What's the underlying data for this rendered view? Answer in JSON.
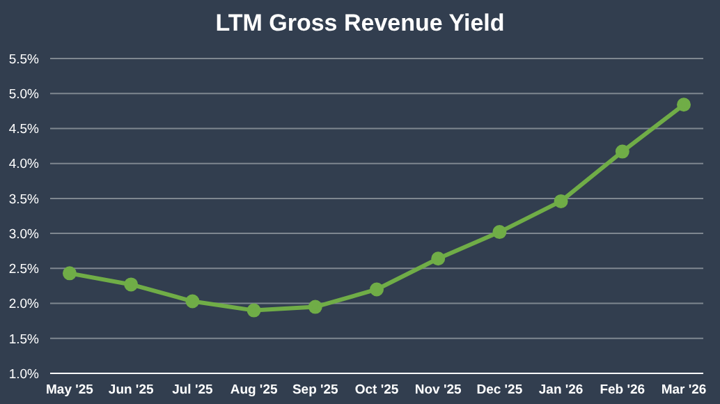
{
  "chart_data": {
    "type": "line",
    "title": "LTM Gross Revenue Yield",
    "categories": [
      "May '25",
      "Jun '25",
      "Jul '25",
      "Aug '25",
      "Sep '25",
      "Oct '25",
      "Nov '25",
      "Dec '25",
      "Jan '26",
      "Feb '26",
      "Mar '26"
    ],
    "series": [
      {
        "color": "#70ad47",
        "values": [
          2.43,
          2.27,
          2.03,
          1.9,
          1.95,
          2.2,
          2.64,
          3.02,
          3.46,
          4.17,
          4.84
        ]
      }
    ],
    "ylim": [
      1.0,
      5.5
    ],
    "yticks": [
      {
        "value": 1.0,
        "label": "1.0%"
      },
      {
        "value": 1.5,
        "label": "1.5%"
      },
      {
        "value": 2.0,
        "label": "2.0%"
      },
      {
        "value": 2.5,
        "label": "2.5%"
      },
      {
        "value": 3.0,
        "label": "3.0%"
      },
      {
        "value": 3.5,
        "label": "3.5%"
      },
      {
        "value": 4.0,
        "label": "4.0%"
      },
      {
        "value": 4.5,
        "label": "4.5%"
      },
      {
        "value": 5.0,
        "label": "5.0%"
      },
      {
        "value": 5.5,
        "label": "5.5%"
      }
    ],
    "grid": "y",
    "marker": "circle",
    "line_style": "solid",
    "legend": false
  }
}
